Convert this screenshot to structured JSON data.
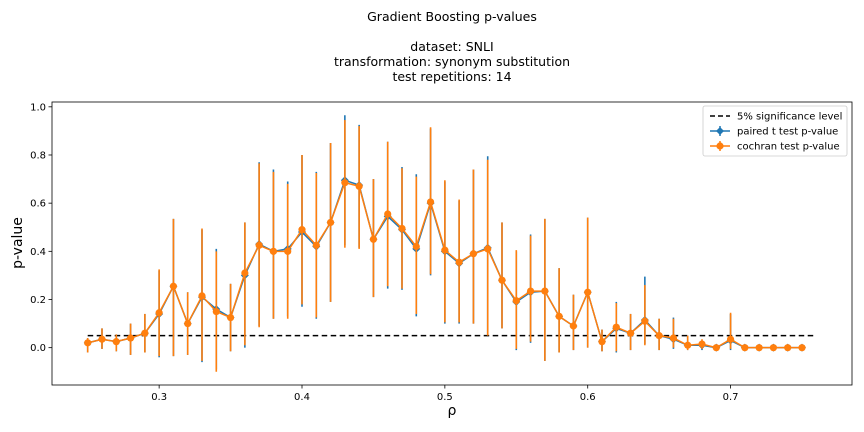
{
  "chart_data": {
    "type": "line",
    "title_lines": [
      "Gradient Boosting p-values",
      "",
      "dataset: SNLI",
      "transformation: synonym substitution",
      "test repetitions: 14"
    ],
    "xlabel": "ρ",
    "ylabel": "p-value",
    "xlim": [
      0.225,
      0.785
    ],
    "ylim": [
      -0.155,
      1.02
    ],
    "xticks": [
      0.3,
      0.4,
      0.5,
      0.6,
      0.7
    ],
    "xtick_labels": [
      "0.3",
      "0.4",
      "0.5",
      "0.6",
      "0.7"
    ],
    "yticks": [
      0.0,
      0.2,
      0.4,
      0.6,
      0.8,
      1.0
    ],
    "ytick_labels": [
      "0.0",
      "0.2",
      "0.4",
      "0.6",
      "0.8",
      "1.0"
    ],
    "grid": false,
    "legend_position": "top-right",
    "legend": [
      {
        "label": "5% significance level",
        "kind": "dashed",
        "color": "#000000"
      },
      {
        "label": "paired t test p-value",
        "kind": "errorbar-marker",
        "color": "#1f77b4",
        "marker": "diamond"
      },
      {
        "label": "cochran test p-value",
        "kind": "errorbar-marker",
        "color": "#ff7f0e",
        "marker": "circle"
      }
    ],
    "significance_line": {
      "y": 0.05,
      "x": [
        0.25,
        0.76
      ]
    },
    "x": [
      0.25,
      0.26,
      0.27,
      0.28,
      0.29,
      0.3,
      0.31,
      0.32,
      0.33,
      0.34,
      0.35,
      0.36,
      0.37,
      0.38,
      0.39,
      0.4,
      0.41,
      0.42,
      0.43,
      0.44,
      0.45,
      0.46,
      0.47,
      0.48,
      0.49,
      0.5,
      0.51,
      0.52,
      0.53,
      0.54,
      0.55,
      0.56,
      0.57,
      0.58,
      0.59,
      0.6,
      0.61,
      0.62,
      0.63,
      0.64,
      0.65,
      0.66,
      0.67,
      0.68,
      0.69,
      0.7,
      0.71,
      0.72,
      0.73,
      0.74,
      0.75
    ],
    "series": [
      {
        "name": "paired t test p-value",
        "color": "#1f77b4",
        "marker": "diamond",
        "values": [
          0.02,
          0.035,
          0.025,
          0.04,
          0.06,
          0.14,
          0.255,
          0.1,
          0.21,
          0.16,
          0.125,
          0.3,
          0.43,
          0.4,
          0.41,
          0.48,
          0.42,
          0.52,
          0.695,
          0.675,
          0.45,
          0.545,
          0.49,
          0.41,
          0.6,
          0.4,
          0.35,
          0.39,
          0.415,
          0.28,
          0.19,
          0.23,
          0.235,
          0.13,
          0.09,
          0.23,
          0.025,
          0.08,
          0.06,
          0.115,
          0.05,
          0.035,
          0.01,
          0.01,
          0.0,
          0.03,
          0.0,
          0.0,
          0.0,
          0.0,
          0.0
        ],
        "err_low": [
          0.04,
          0.04,
          0.04,
          0.07,
          0.08,
          0.18,
          0.29,
          0.13,
          0.27,
          0.25,
          0.14,
          0.3,
          0.34,
          0.28,
          0.28,
          0.31,
          0.3,
          0.33,
          0.27,
          0.26,
          0.24,
          0.3,
          0.25,
          0.28,
          0.3,
          0.3,
          0.25,
          0.29,
          0.36,
          0.2,
          0.2,
          0.21,
          0.29,
          0.15,
          0.1,
          0.23,
          0.04,
          0.1,
          0.07,
          0.1,
          0.06,
          0.04,
          0.02,
          0.02,
          0.01,
          0.04,
          0.01,
          0.01,
          0.01,
          0.01,
          0.01
        ],
        "err_high": [
          0.02,
          0.045,
          0.03,
          0.06,
          0.08,
          0.18,
          0.28,
          0.13,
          0.28,
          0.25,
          0.14,
          0.22,
          0.34,
          0.34,
          0.28,
          0.32,
          0.31,
          0.33,
          0.27,
          0.25,
          0.25,
          0.31,
          0.26,
          0.31,
          0.31,
          0.29,
          0.26,
          0.35,
          0.38,
          0.24,
          0.21,
          0.24,
          0.3,
          0.2,
          0.13,
          0.31,
          0.05,
          0.11,
          0.08,
          0.18,
          0.07,
          0.09,
          0.04,
          0.02,
          0.01,
          0.11,
          0.01,
          0.01,
          0.01,
          0.01,
          0.01
        ]
      },
      {
        "name": "cochran test p-value",
        "color": "#ff7f0e",
        "marker": "circle",
        "values": [
          0.02,
          0.035,
          0.025,
          0.04,
          0.06,
          0.145,
          0.255,
          0.1,
          0.215,
          0.15,
          0.125,
          0.31,
          0.425,
          0.4,
          0.4,
          0.49,
          0.425,
          0.52,
          0.685,
          0.67,
          0.45,
          0.555,
          0.495,
          0.42,
          0.605,
          0.405,
          0.355,
          0.39,
          0.41,
          0.28,
          0.195,
          0.235,
          0.235,
          0.13,
          0.09,
          0.23,
          0.025,
          0.085,
          0.06,
          0.11,
          0.05,
          0.04,
          0.01,
          0.015,
          0.0,
          0.035,
          0.0,
          0.0,
          0.0,
          0.0,
          0.0
        ],
        "err_low": [
          0.04,
          0.04,
          0.04,
          0.07,
          0.08,
          0.18,
          0.29,
          0.13,
          0.27,
          0.25,
          0.14,
          0.3,
          0.34,
          0.28,
          0.28,
          0.31,
          0.3,
          0.33,
          0.27,
          0.26,
          0.24,
          0.3,
          0.25,
          0.28,
          0.3,
          0.3,
          0.25,
          0.29,
          0.36,
          0.2,
          0.2,
          0.21,
          0.29,
          0.15,
          0.1,
          0.23,
          0.04,
          0.1,
          0.07,
          0.1,
          0.06,
          0.04,
          0.02,
          0.02,
          0.01,
          0.04,
          0.01,
          0.01,
          0.01,
          0.01,
          0.01
        ],
        "err_high": [
          0.02,
          0.045,
          0.03,
          0.06,
          0.08,
          0.18,
          0.28,
          0.13,
          0.28,
          0.25,
          0.14,
          0.21,
          0.34,
          0.33,
          0.28,
          0.31,
          0.3,
          0.33,
          0.26,
          0.25,
          0.25,
          0.3,
          0.25,
          0.29,
          0.31,
          0.29,
          0.26,
          0.35,
          0.37,
          0.24,
          0.21,
          0.23,
          0.3,
          0.2,
          0.13,
          0.31,
          0.05,
          0.1,
          0.08,
          0.15,
          0.07,
          0.08,
          0.04,
          0.02,
          0.01,
          0.11,
          0.01,
          0.01,
          0.01,
          0.01,
          0.01
        ]
      }
    ]
  }
}
